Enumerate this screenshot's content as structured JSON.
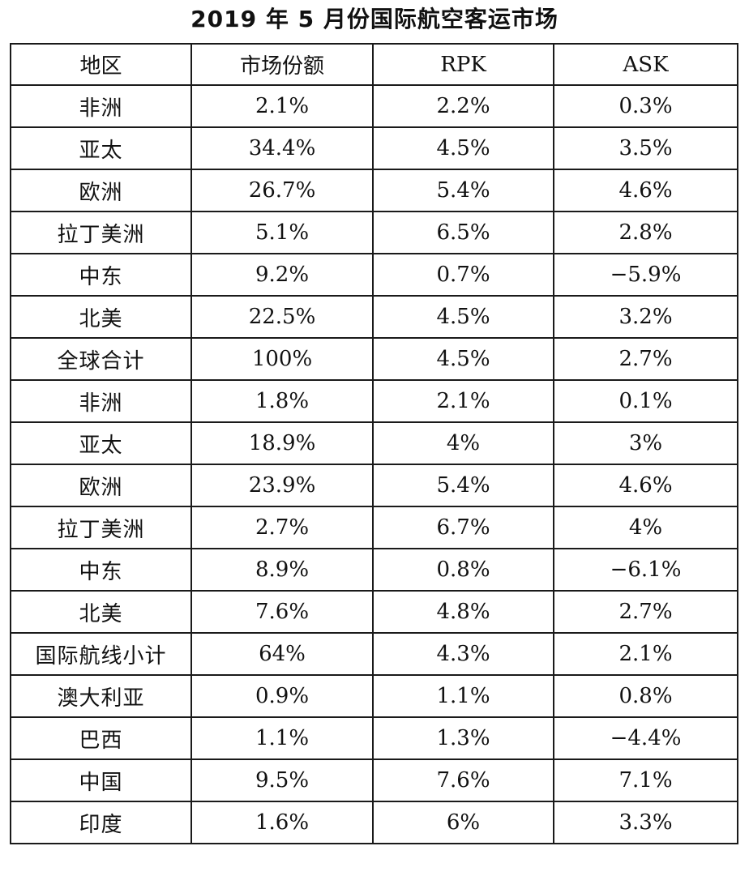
{
  "title": "2019 年 5 月份国际航空客运市场",
  "table": {
    "headers": [
      "地区",
      "市场份额",
      "RPK",
      "ASK"
    ],
    "rows": [
      [
        "非洲",
        "2.1%",
        "2.2%",
        "0.3%"
      ],
      [
        "亚太",
        "34.4%",
        "4.5%",
        "3.5%"
      ],
      [
        "欧洲",
        "26.7%",
        "5.4%",
        "4.6%"
      ],
      [
        "拉丁美洲",
        "5.1%",
        "6.5%",
        "2.8%"
      ],
      [
        "中东",
        "9.2%",
        "0.7%",
        "−5.9%"
      ],
      [
        "北美",
        "22.5%",
        "4.5%",
        "3.2%"
      ],
      [
        "全球合计",
        "100%",
        "4.5%",
        "2.7%"
      ],
      [
        "非洲",
        "1.8%",
        "2.1%",
        "0.1%"
      ],
      [
        "亚太",
        "18.9%",
        "4%",
        "3%"
      ],
      [
        "欧洲",
        "23.9%",
        "5.4%",
        "4.6%"
      ],
      [
        "拉丁美洲",
        "2.7%",
        "6.7%",
        "4%"
      ],
      [
        "中东",
        "8.9%",
        "0.8%",
        "−6.1%"
      ],
      [
        "北美",
        "7.6%",
        "4.8%",
        "2.7%"
      ],
      [
        "国际航线小计",
        "64%",
        "4.3%",
        "2.1%"
      ],
      [
        "澳大利亚",
        "0.9%",
        "1.1%",
        "0.8%"
      ],
      [
        "巴西",
        "1.1%",
        "1.3%",
        "−4.4%"
      ],
      [
        "中国",
        "9.5%",
        "7.6%",
        "7.1%"
      ],
      [
        "印度",
        "1.6%",
        "6%",
        "3.3%"
      ]
    ]
  }
}
